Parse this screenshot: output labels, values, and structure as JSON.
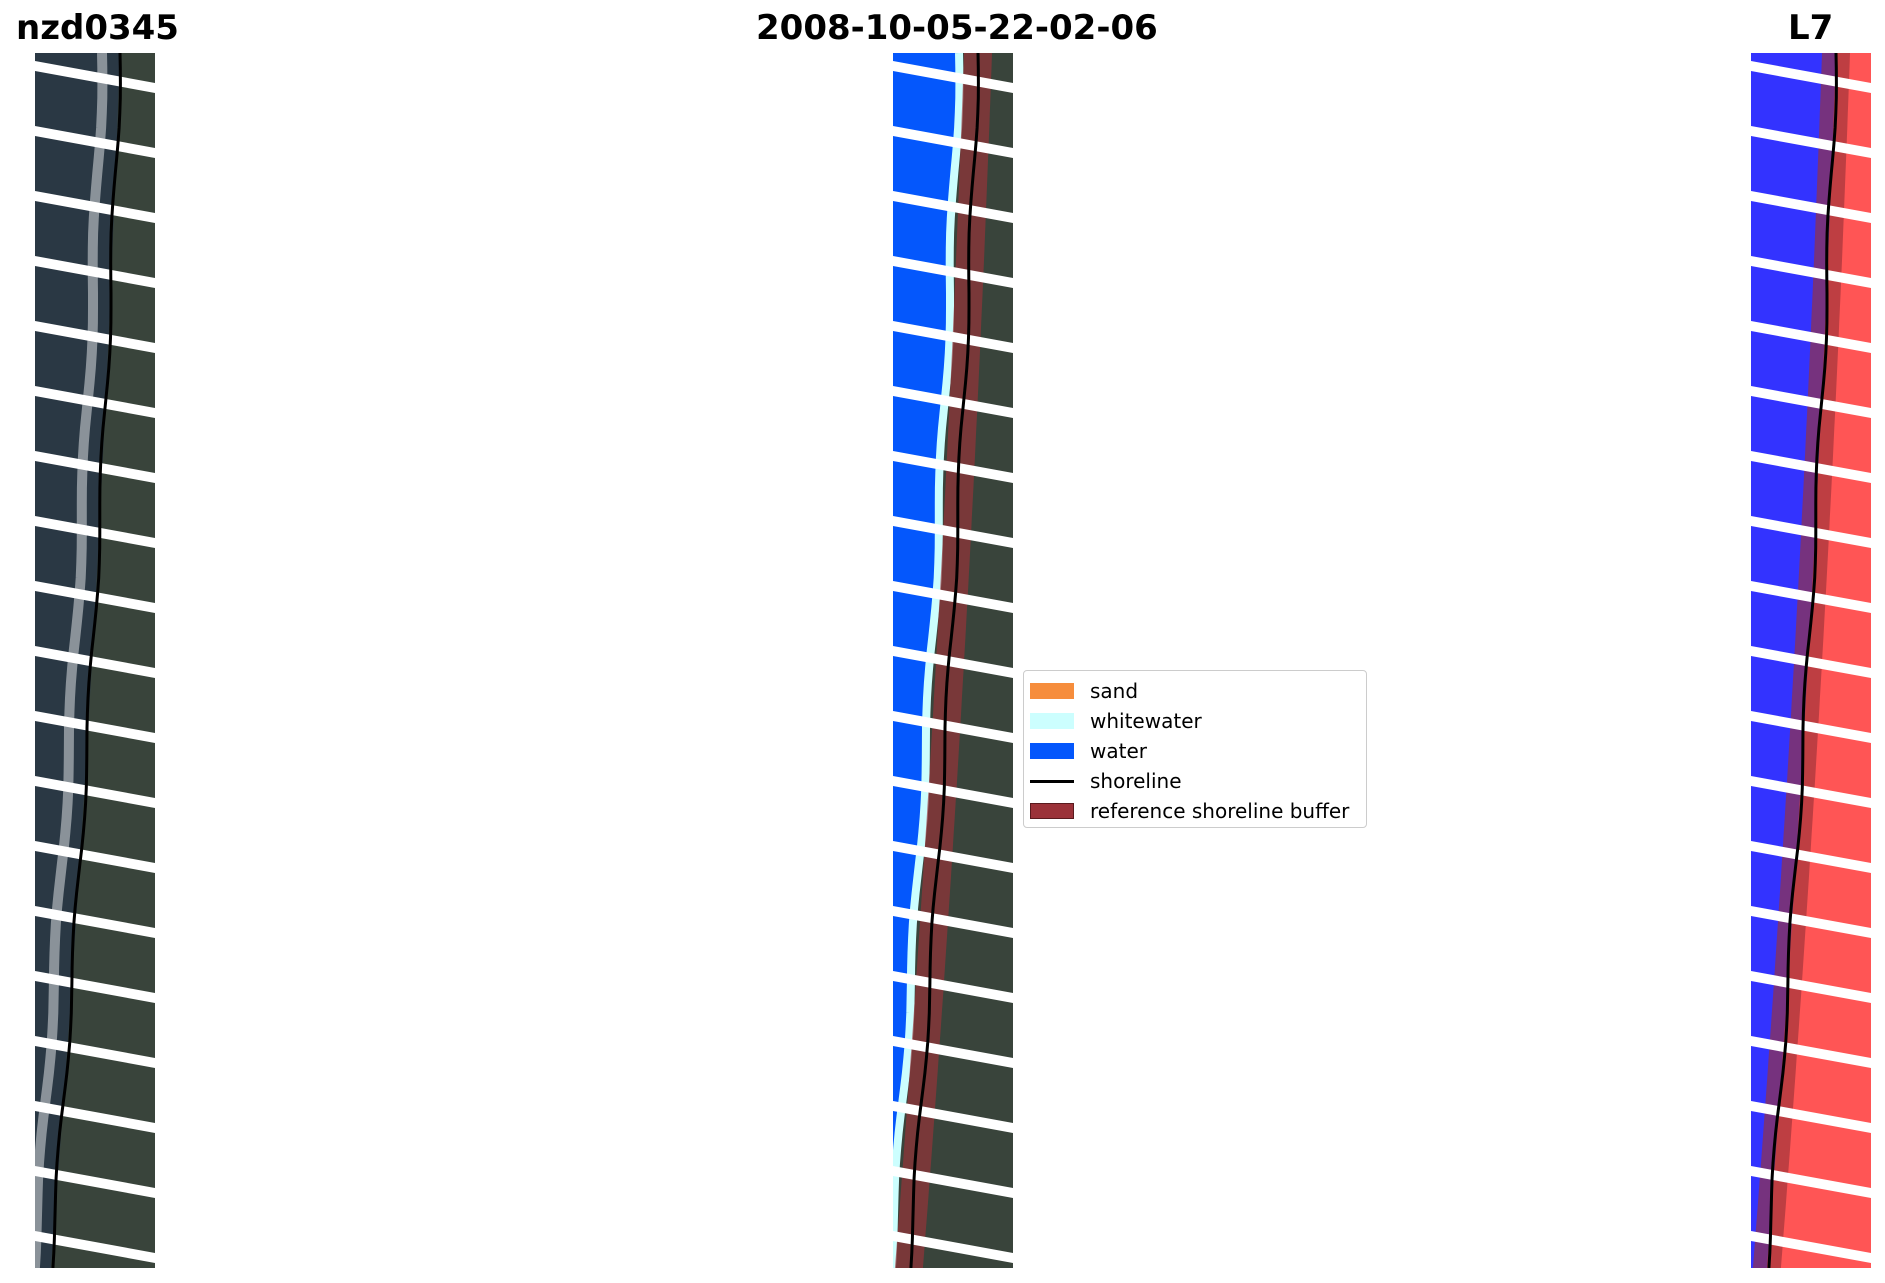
{
  "titles": {
    "site": "nzd0345",
    "date": "2008-10-05-22-02-06",
    "satellite": "L7"
  },
  "legend": {
    "items": [
      {
        "label": "sand",
        "color": "#f68d3c",
        "kind": "patch"
      },
      {
        "label": "whitewater",
        "color": "#ccfefe",
        "kind": "patch"
      },
      {
        "label": "water",
        "color": "#0457fc",
        "kind": "patch"
      },
      {
        "label": "shoreline",
        "color": "#000000",
        "kind": "line"
      },
      {
        "label": "reference shoreline buffer",
        "color": "#9b3239",
        "kind": "patch"
      }
    ]
  },
  "colors": {
    "water_class": "#0457fc",
    "whitewater_class": "#ccfefe",
    "buffer": "#9b3239",
    "ndwi_water": "#3333ff",
    "ndwi_land": "#ff5555",
    "rgb_ocean": "#2a3844",
    "rgb_land": "#39443b",
    "shoreline": "#000000",
    "scan_gap": "#ffffff"
  }
}
